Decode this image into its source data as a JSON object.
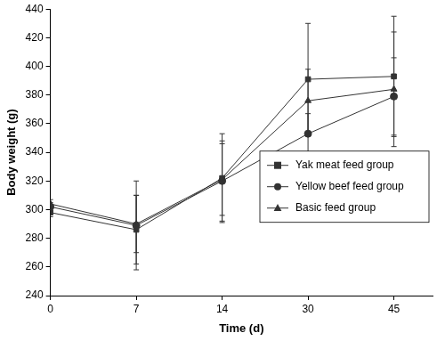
{
  "chart_data": {
    "type": "line",
    "x_label": "Time (d)",
    "y_label": "Body weight (g)",
    "categories": [
      "0",
      "7",
      "14",
      "30",
      "45"
    ],
    "series": [
      {
        "name": "Yak meat feed group",
        "color": "#333333",
        "marker": "square",
        "values": [
          298,
          286,
          322,
          391,
          393
        ],
        "error": [
          3,
          24,
          31,
          39,
          42
        ]
      },
      {
        "name": "Yellow beef feed group",
        "color": "#333333",
        "marker": "circle",
        "values": [
          302,
          289,
          320,
          353,
          379
        ],
        "error": [
          3,
          31,
          28,
          14,
          27
        ]
      },
      {
        "name": "Basic feed group",
        "color": "#333333",
        "marker": "triangle",
        "values": [
          304,
          290,
          321,
          376,
          384
        ],
        "error": [
          3,
          20,
          25,
          22,
          40
        ]
      }
    ],
    "ylim": [
      240,
      440
    ],
    "yticks": [
      240,
      260,
      280,
      300,
      320,
      340,
      360,
      380,
      400,
      420,
      440
    ],
    "grid": false,
    "legend": "right"
  }
}
